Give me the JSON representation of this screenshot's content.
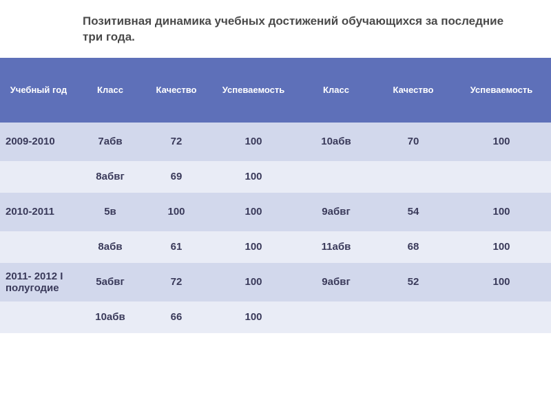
{
  "title": "Позитивная динамика учебных достижений  обучающихся за последние три года.",
  "colors": {
    "header_bg": "#5e70b9",
    "header_text": "#ffffff",
    "row_light": "#d2d8ec",
    "row_lighter": "#e9ecf6",
    "text": "#3a3a5a",
    "title_text": "#4a4a4a"
  },
  "columns": [
    "Учебный год",
    "Класс",
    "Качество",
    "Успеваемость",
    "Класс",
    "Качество",
    "Успеваемость"
  ],
  "col_widths": [
    "14%",
    "12%",
    "12%",
    "16%",
    "14%",
    "14%",
    "18%"
  ],
  "rows": [
    {
      "shade": "light",
      "cells": [
        "2009-2010",
        "7абв",
        "72",
        "100",
        "10абв",
        "70",
        "100"
      ]
    },
    {
      "shade": "lighter",
      "cells": [
        "",
        "8абвг",
        "69",
        "100",
        "",
        "",
        ""
      ]
    },
    {
      "shade": "light",
      "cells": [
        "2010-2011",
        "5в",
        "100",
        "100",
        "9абвг",
        "54",
        "100"
      ]
    },
    {
      "shade": "lighter",
      "cells": [
        "",
        "8абв",
        "61",
        "100",
        "11абв",
        "68",
        "100"
      ]
    },
    {
      "shade": "light",
      "cells": [
        "2011- 2012 I полугодие",
        "5абвг",
        "72",
        "100",
        "9абвг",
        "52",
        "100"
      ]
    },
    {
      "shade": "lighter",
      "cells": [
        "",
        "10абв",
        "66",
        "100",
        "",
        "",
        ""
      ]
    }
  ]
}
